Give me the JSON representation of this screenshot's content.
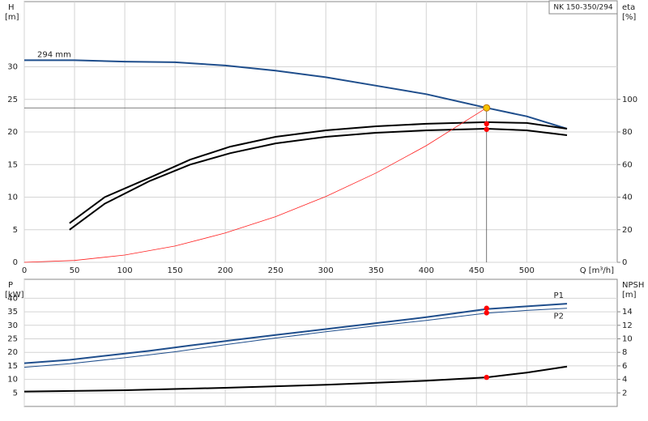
{
  "chart_data": [
    {
      "type": "line",
      "title": "NK 150-350/294",
      "annotation": "294 mm",
      "y_label": "H",
      "y_unit": "[m]",
      "y2_label": "eta",
      "y2_unit": "[%]",
      "x_label": "Q [m³/h]",
      "xlim": [
        0,
        590
      ],
      "xticks": [
        0,
        50,
        100,
        150,
        200,
        250,
        300,
        350,
        400,
        450,
        500
      ],
      "ylim": [
        0,
        40
      ],
      "yticks": [
        0,
        5,
        10,
        15,
        20,
        25,
        30
      ],
      "y2lim": [
        0,
        160
      ],
      "y2ticks": [
        0,
        20,
        40,
        60,
        80,
        100
      ],
      "grid": true,
      "series": [
        {
          "color": "#1f4e8c",
          "line_width": 2,
          "x": [
            0,
            50,
            100,
            150,
            200,
            250,
            300,
            350,
            400,
            460,
            500,
            540
          ],
          "values": [
            31.0,
            31.0,
            30.8,
            30.7,
            30.2,
            29.4,
            28.4,
            27.1,
            25.8,
            23.7,
            22.4,
            20.5
          ]
        },
        {
          "color": "#000000",
          "line_width": 2,
          "axis": "y2",
          "x": [
            45,
            80,
            125,
            165,
            205,
            250,
            300,
            350,
            400,
            460,
            500,
            540
          ],
          "values": [
            24,
            40,
            52,
            63,
            71,
            77,
            81,
            83.5,
            85,
            86,
            85.5,
            82
          ]
        },
        {
          "color": "#000000",
          "line_width": 2,
          "axis": "y2",
          "x": [
            45,
            80,
            125,
            165,
            205,
            250,
            300,
            350,
            400,
            460,
            500,
            540
          ],
          "values": [
            20,
            36,
            50,
            60,
            67,
            73,
            77,
            79.5,
            81,
            82,
            81,
            78
          ]
        },
        {
          "color": "#ff2020",
          "line_width": 0.8,
          "x": [
            0,
            50,
            100,
            150,
            200,
            250,
            300,
            350,
            400,
            460
          ],
          "values": [
            0,
            0.28,
            1.12,
            2.5,
            4.5,
            7.0,
            10.1,
            13.7,
            17.9,
            23.7
          ]
        }
      ],
      "operating_point": {
        "x": 460,
        "y": 23.7,
        "color": "#f5c400"
      },
      "points": [
        {
          "x": 460,
          "y": 85,
          "axis": "y2",
          "color": "#ff0000"
        },
        {
          "x": 460,
          "y": 81.6,
          "axis": "y2",
          "color": "#ff0000"
        }
      ]
    },
    {
      "type": "line",
      "y_label": "P",
      "y_unit": "[kW]",
      "y2_label": "NPSH",
      "y2_unit": "[m]",
      "xlim": [
        0,
        590
      ],
      "xticks": [
        0,
        50,
        100,
        150,
        200,
        250,
        300,
        350,
        400,
        450,
        500
      ],
      "ylim": [
        0,
        47
      ],
      "yticks": [
        5,
        10,
        15,
        20,
        25,
        30,
        35,
        40
      ],
      "y2lim": [
        0,
        18.8
      ],
      "y2ticks": [
        2,
        4,
        6,
        8,
        10,
        12,
        14
      ],
      "grid": true,
      "series": [
        {
          "name": "P1",
          "color": "#1f4e8c",
          "line_width": 2,
          "x": [
            0,
            45,
            80,
            125,
            165,
            205,
            250,
            300,
            350,
            400,
            460,
            500,
            540
          ],
          "values": [
            16,
            17.2,
            18.7,
            20.6,
            22.5,
            24.4,
            26.4,
            28.6,
            30.8,
            33,
            36,
            37,
            38
          ]
        },
        {
          "name": "P2",
          "color": "#1f4e8c",
          "line_width": 1,
          "x": [
            0,
            45,
            100,
            150,
            200,
            250,
            300,
            350,
            400,
            460,
            500,
            540
          ],
          "values": [
            14.5,
            15.8,
            18,
            20.2,
            22.8,
            25.3,
            27.6,
            29.8,
            31.8,
            34.5,
            35.5,
            36.3
          ]
        },
        {
          "color": "#000000",
          "line_width": 2,
          "axis": "y2",
          "x": [
            0,
            100,
            200,
            300,
            400,
            460,
            500,
            540
          ],
          "values": [
            2.2,
            2.4,
            2.75,
            3.2,
            3.8,
            4.3,
            5.0,
            5.9
          ]
        }
      ],
      "points": [
        {
          "x": 460,
          "y": 36.3,
          "color": "#ff0000"
        },
        {
          "x": 460,
          "y": 34.6,
          "color": "#ff0000"
        },
        {
          "x": 460,
          "y": 4.3,
          "axis": "y2",
          "color": "#ff0000"
        }
      ]
    }
  ]
}
